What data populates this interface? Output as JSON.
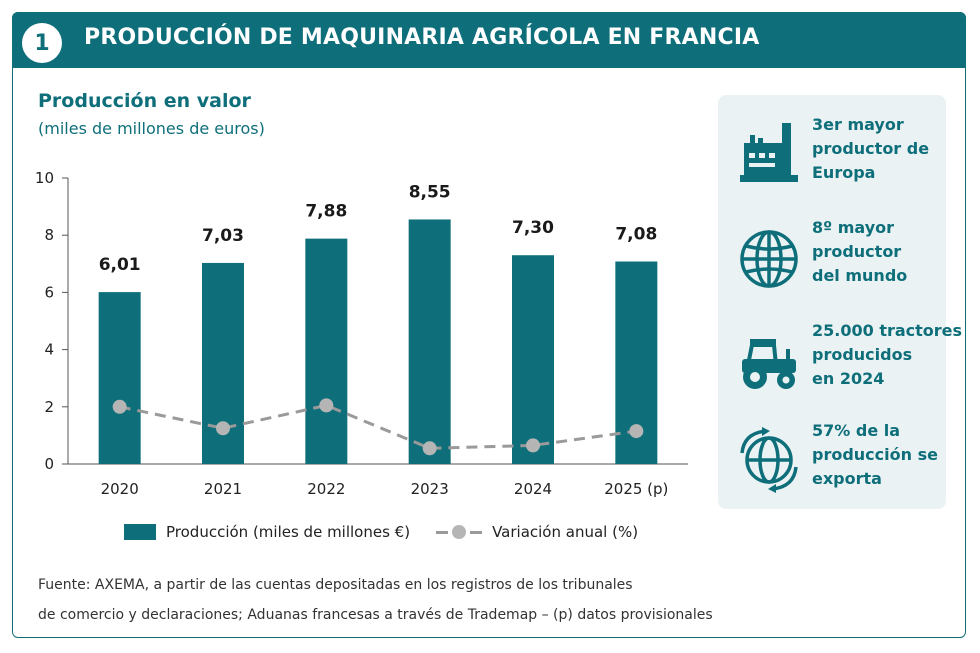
{
  "header": {
    "badge": "1",
    "title": "PRODUCCIÓN DE MAQUINARIA AGRÍCOLA EN FRANCIA"
  },
  "chart": {
    "title": "Producción en valor",
    "subtitle": "(miles de millones de euros)"
  },
  "chart_data": {
    "type": "bar",
    "categories": [
      "2020",
      "2021",
      "2022",
      "2023",
      "2024",
      "2025 (p)"
    ],
    "series": [
      {
        "name": "Producción (miles de millones €)",
        "type": "bar",
        "values": [
          6.01,
          7.03,
          7.88,
          8.55,
          7.3,
          7.08
        ],
        "data_labels": [
          "6,01",
          "7,03",
          "7,88",
          "8,55",
          "7,30",
          "7,08"
        ]
      },
      {
        "name": "Variación anual (%)",
        "type": "line",
        "style": "dashed",
        "values": [
          2.0,
          1.25,
          2.05,
          0.55,
          0.65,
          1.15
        ]
      }
    ],
    "yticks": [
      "0",
      "2",
      "4",
      "6",
      "8",
      "10"
    ],
    "ylim": [
      0,
      10
    ],
    "grid": false,
    "legend_position": "bottom",
    "colors": {
      "bar": "#0e6f7a",
      "line": "#9a9a9a",
      "marker": "#b5b5b5"
    }
  },
  "legend": {
    "bar_label": "Producción (miles de millones €)",
    "line_label": "Variación anual (%)"
  },
  "facts": [
    {
      "icon": "factory-icon",
      "lines": [
        "3er mayor",
        "productor de",
        "Europa"
      ]
    },
    {
      "icon": "globe-icon",
      "lines": [
        "8º mayor",
        "productor",
        "del mundo"
      ]
    },
    {
      "icon": "tractor-icon",
      "lines": [
        "25.000 tractores",
        "producidos",
        "en 2024"
      ]
    },
    {
      "icon": "globe-arrows-icon",
      "lines": [
        "57% de la",
        "producción se",
        "exporta"
      ]
    }
  ],
  "source": {
    "line1": "Fuente: AXEMA, a partir de las cuentas depositadas en los registros de los tribunales",
    "line2": "de comercio y declaraciones; Aduanas francesas a través de Trademap –  (p)  datos provisionales"
  }
}
